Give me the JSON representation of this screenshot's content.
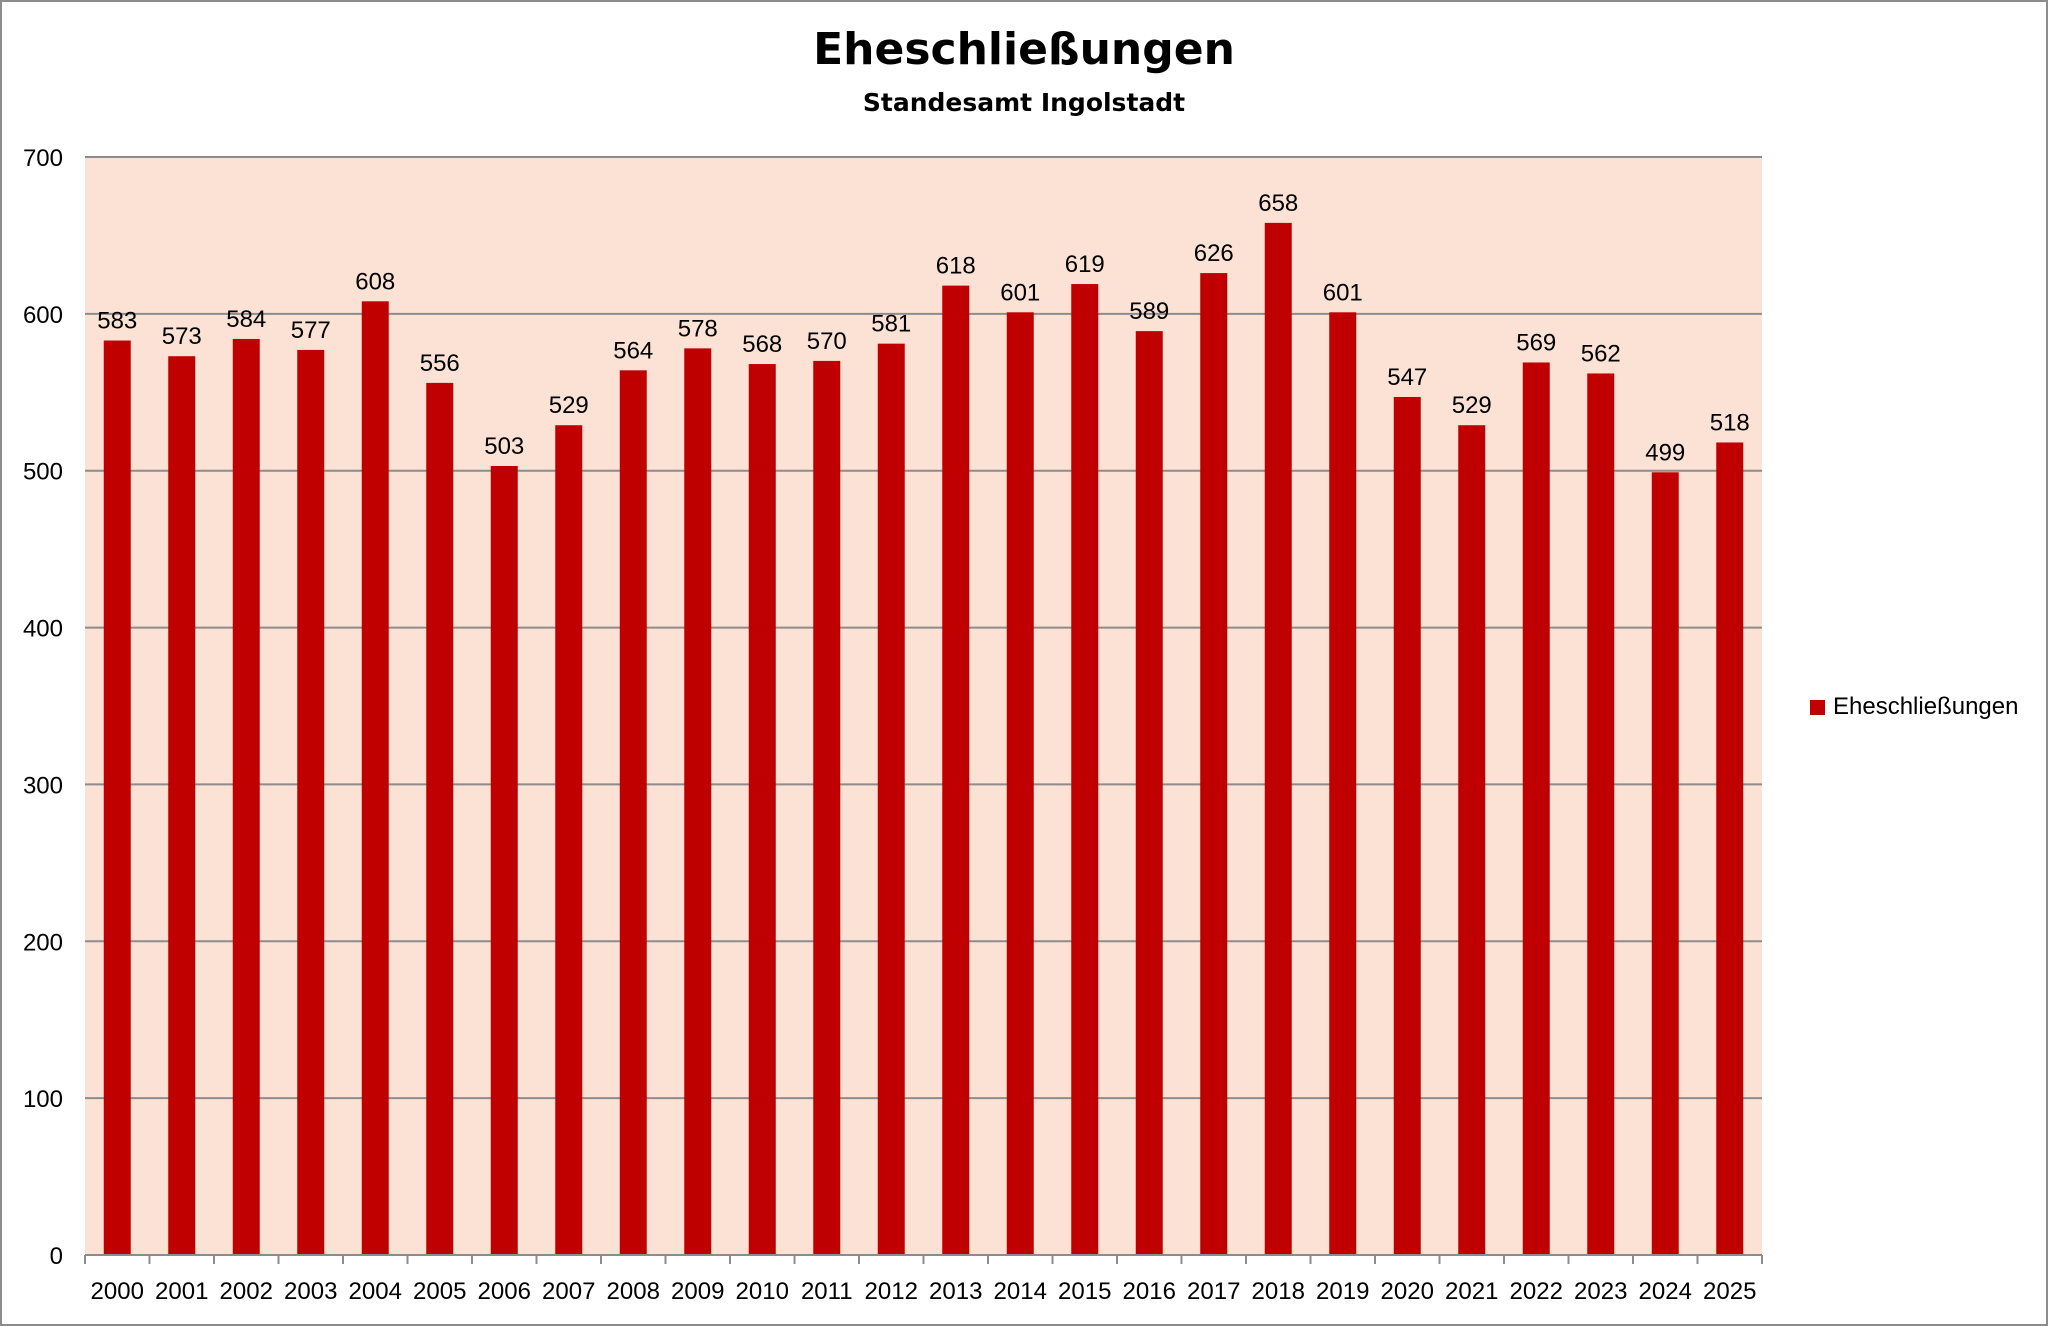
{
  "colors": {
    "bar": "#c00000",
    "plot_background": "#fbe2d5",
    "gridline": "#8c8c8c",
    "axis_text": "#000000"
  },
  "chart_data": {
    "type": "bar",
    "title": "Eheschließungen",
    "subtitle": "Standesamt Ingolstadt",
    "xlabel": "",
    "ylabel": "",
    "categories": [
      "2000",
      "2001",
      "2002",
      "2003",
      "2004",
      "2005",
      "2006",
      "2007",
      "2008",
      "2009",
      "2010",
      "2011",
      "2012",
      "2013",
      "2014",
      "2015",
      "2016",
      "2017",
      "2018",
      "2019",
      "2020",
      "2021",
      "2022",
      "2023",
      "2024",
      "2025"
    ],
    "series": [
      {
        "name": "Eheschließungen",
        "values": [
          583,
          573,
          584,
          577,
          608,
          556,
          503,
          529,
          564,
          578,
          568,
          570,
          581,
          618,
          601,
          619,
          589,
          626,
          658,
          601,
          547,
          529,
          569,
          562,
          499,
          518
        ]
      }
    ],
    "ylim": [
      0,
      700
    ],
    "yticks": [
      0,
      100,
      200,
      300,
      400,
      500,
      600,
      700
    ],
    "grid": true,
    "legend": "right",
    "data_labels": true
  }
}
